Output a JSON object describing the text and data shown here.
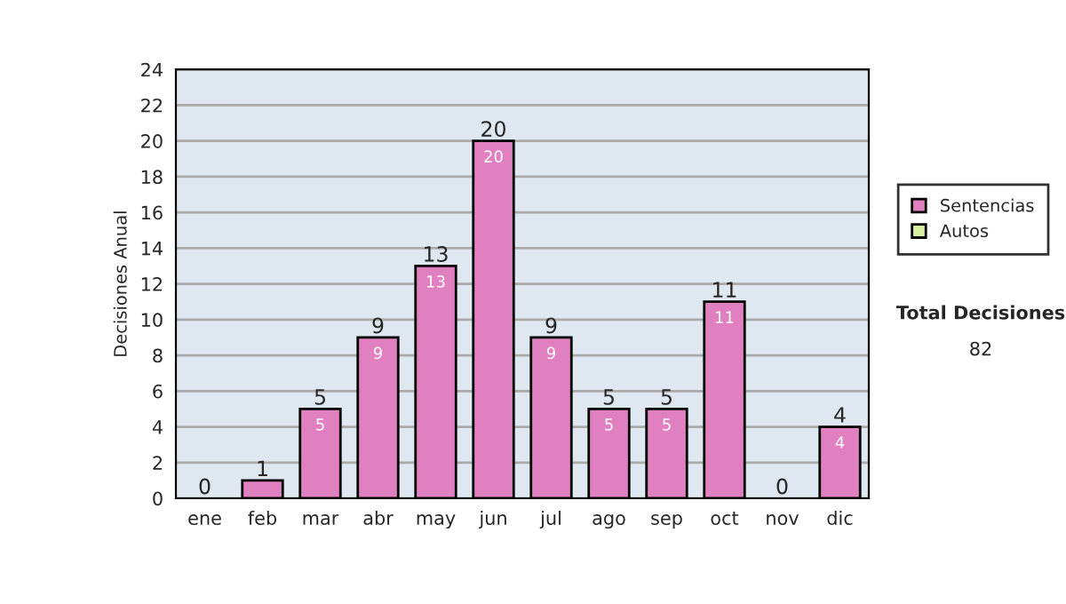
{
  "chart_data": {
    "type": "bar",
    "ylabel": "Decisiones Anual",
    "stacked": true,
    "categories": [
      "ene",
      "feb",
      "mar",
      "abr",
      "may",
      "jun",
      "jul",
      "ago",
      "sep",
      "oct",
      "nov",
      "dic"
    ],
    "series": [
      {
        "name": "Sentencias",
        "color": "#e080c0",
        "values": [
          0,
          1,
          5,
          9,
          13,
          20,
          9,
          5,
          5,
          11,
          0,
          4
        ],
        "value_labels": [
          null,
          null,
          "5",
          "9",
          "13",
          "20",
          "9",
          "5",
          "5",
          "11",
          null,
          "4"
        ]
      },
      {
        "name": "Autos",
        "color": "#d8f0a0",
        "values": [
          0,
          0,
          0,
          0,
          0,
          0,
          0,
          0,
          0,
          0,
          0,
          0
        ]
      }
    ],
    "totals": [
      "0",
      "1",
      "5",
      "9",
      "13",
      "20",
      "9",
      "5",
      "5",
      "11",
      "0",
      "4"
    ],
    "ylim": [
      0,
      24
    ],
    "yticks": [
      0,
      2,
      4,
      6,
      8,
      10,
      12,
      14,
      16,
      18,
      20,
      22,
      24
    ],
    "grid": "y",
    "legend": "right",
    "annotations": [
      "Total Decisiones",
      "82"
    ]
  }
}
